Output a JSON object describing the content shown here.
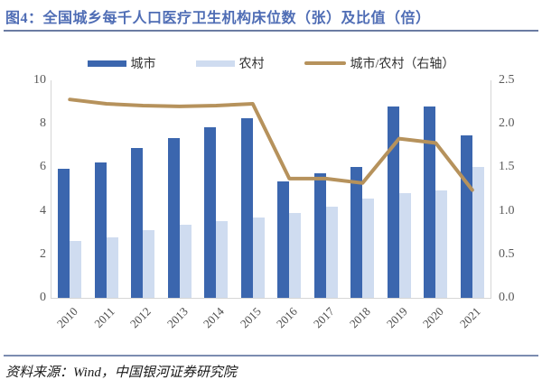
{
  "header": {
    "title": "图4：全国城乡每千人口医疗卫生机构床位数（张）及比值（倍）"
  },
  "legend": {
    "items": [
      {
        "label": "城市",
        "type": "bar",
        "color": "#3b66ae"
      },
      {
        "label": "农村",
        "type": "bar",
        "color": "#cfdcf0"
      },
      {
        "label": "城市/农村（右轴）",
        "type": "line",
        "color": "#b6925c"
      }
    ]
  },
  "chart_data": {
    "type": "bar",
    "subtype": "grouped bars with overlay line on secondary axis",
    "categories": [
      "2010",
      "2011",
      "2012",
      "2013",
      "2014",
      "2015",
      "2016",
      "2017",
      "2018",
      "2019",
      "2020",
      "2021"
    ],
    "series": [
      {
        "name": "城市",
        "type": "bar",
        "axis": "left",
        "color": "#3b66ae",
        "values": [
          5.94,
          6.24,
          6.88,
          7.36,
          7.84,
          8.27,
          5.37,
          5.72,
          6.03,
          8.78,
          8.81,
          7.46
        ]
      },
      {
        "name": "农村",
        "type": "bar",
        "axis": "left",
        "color": "#cfdcf0",
        "values": [
          2.6,
          2.8,
          3.11,
          3.35,
          3.54,
          3.71,
          3.91,
          4.19,
          4.56,
          4.81,
          4.95,
          6.01
        ]
      },
      {
        "name": "城市/农村（右轴）",
        "type": "line",
        "axis": "right",
        "color": "#b6925c",
        "values": [
          2.28,
          2.23,
          2.21,
          2.2,
          2.21,
          2.23,
          1.37,
          1.37,
          1.32,
          1.83,
          1.78,
          1.24
        ]
      }
    ],
    "left_axis": {
      "min": 0,
      "max": 10,
      "ticks": [
        "0",
        "2",
        "4",
        "6",
        "8",
        "10"
      ]
    },
    "right_axis": {
      "min": 0,
      "max": 2.5,
      "ticks": [
        "0.0",
        "0.5",
        "1.0",
        "1.5",
        "2.0",
        "2.5"
      ]
    },
    "grid": false,
    "legend_position": "top"
  },
  "footer": {
    "source": "资料来源：Wind，中国银河证券研究院"
  },
  "colors": {
    "title_text": "#4f6db5",
    "title_rule": "#6b7ca3",
    "footer_rule": "#7b8cb0",
    "axis_text": "#595959",
    "axis_line": "#d6d6d6",
    "city_bar": "#3b66ae",
    "rural_bar": "#cfdcf0",
    "ratio_line": "#b6925c"
  }
}
